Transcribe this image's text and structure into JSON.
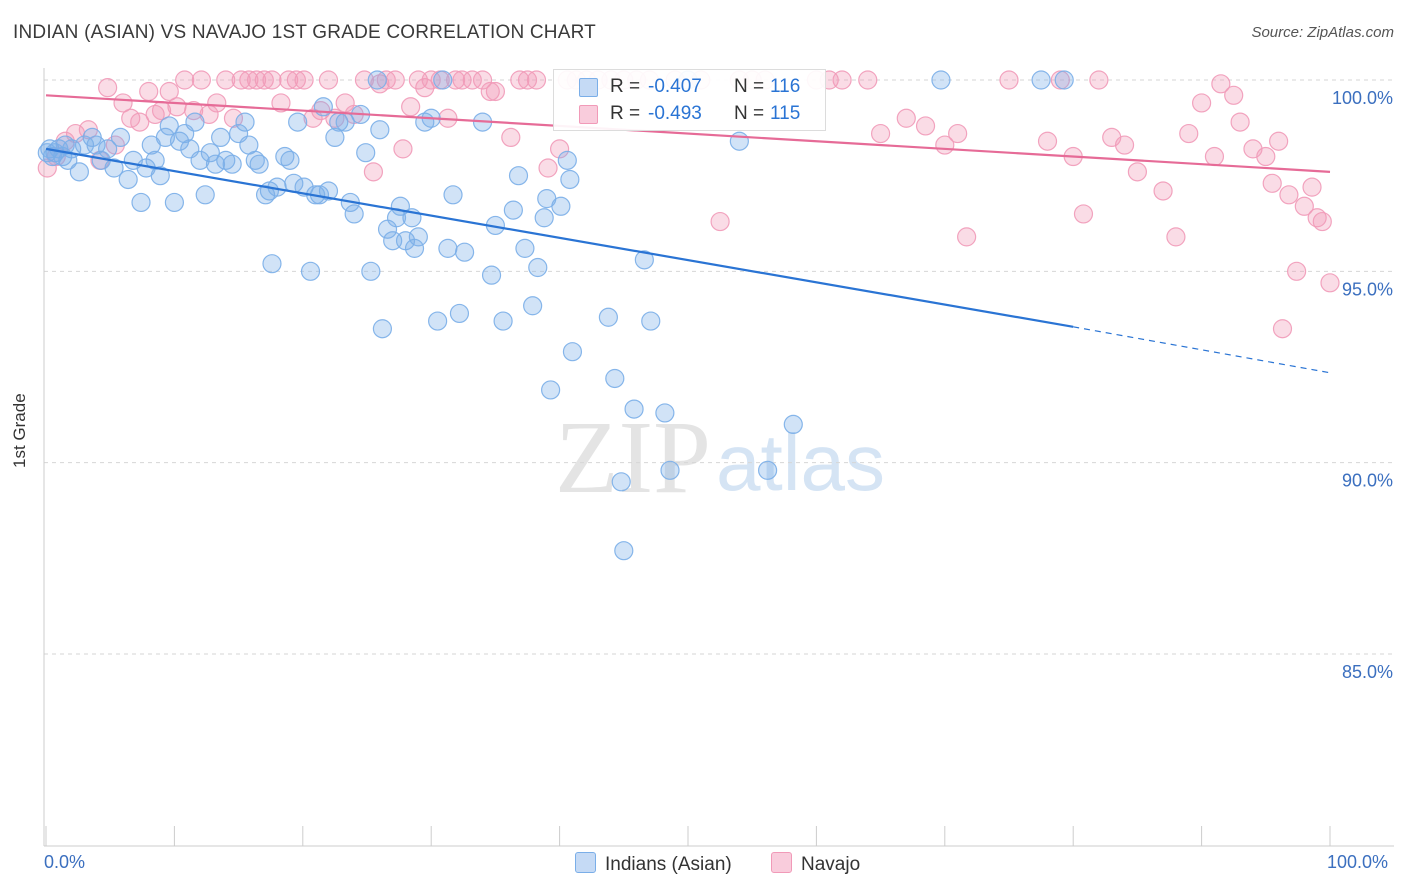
{
  "title": "INDIAN (ASIAN) VS NAVAJO 1ST GRADE CORRELATION CHART",
  "source": "Source: ZipAtlas.com",
  "watermark": {
    "zip": "ZIP",
    "atlas": "atlas"
  },
  "colors": {
    "blue": "#7aaee8",
    "blue_line": "#2a74d4",
    "pink": "#f19ab8",
    "pink_line": "#e66b97",
    "axis_text": "#3b6fbf",
    "grid": "#d6d6d6"
  },
  "legend": {
    "series1": {
      "r_label": "R =",
      "r_value": "-0.407",
      "n_label": "N =",
      "n_value": "116"
    },
    "series2": {
      "r_label": "R =",
      "r_value": "-0.493",
      "n_label": "N =",
      "n_value": "115"
    }
  },
  "bottom_legend": {
    "series1": "Indians (Asian)",
    "series2": "Navajo"
  },
  "chart_data": {
    "type": "scatter",
    "title": "INDIAN (ASIAN) VS NAVAJO 1ST GRADE CORRELATION CHART",
    "xlabel": "",
    "ylabel": "1st Grade",
    "xlim": [
      0,
      100
    ],
    "ylim": [
      80.5,
      101.0
    ],
    "x_tick_labels": [
      "0.0%",
      "100.0%"
    ],
    "y_ticks": [
      85,
      90,
      95,
      100
    ],
    "y_tick_labels": [
      "85.0%",
      "90.0%",
      "95.0%",
      "100.0%"
    ],
    "grid": true,
    "series": [
      {
        "name": "Indians (Asian)",
        "r": -0.407,
        "n": 116,
        "trend": {
          "x0": 0,
          "y0": 98.2,
          "x1": 80,
          "y1": 93.55,
          "dash_to_x": 100,
          "dash_to_y": 92.35
        },
        "points": [
          [
            0.3,
            98.2
          ],
          [
            0.5,
            98.0
          ],
          [
            0.7,
            98.1
          ],
          [
            1.0,
            98.2
          ],
          [
            1.3,
            98.0
          ],
          [
            1.7,
            97.9
          ],
          [
            2.0,
            98.2
          ],
          [
            2.6,
            97.6
          ],
          [
            3.0,
            98.3
          ],
          [
            3.6,
            98.5
          ],
          [
            3.9,
            98.3
          ],
          [
            4.3,
            97.9
          ],
          [
            4.8,
            98.2
          ],
          [
            5.3,
            97.7
          ],
          [
            5.8,
            98.5
          ],
          [
            6.4,
            97.4
          ],
          [
            6.8,
            97.9
          ],
          [
            7.4,
            96.8
          ],
          [
            7.8,
            97.7
          ],
          [
            8.2,
            98.3
          ],
          [
            8.5,
            97.9
          ],
          [
            8.9,
            97.5
          ],
          [
            9.3,
            98.5
          ],
          [
            9.6,
            98.8
          ],
          [
            10.0,
            96.8
          ],
          [
            10.4,
            98.4
          ],
          [
            10.8,
            98.6
          ],
          [
            11.2,
            98.2
          ],
          [
            11.6,
            98.9
          ],
          [
            12.0,
            97.9
          ],
          [
            12.4,
            97.0
          ],
          [
            12.8,
            98.1
          ],
          [
            13.2,
            97.8
          ],
          [
            13.6,
            98.5
          ],
          [
            14.0,
            97.9
          ],
          [
            14.5,
            97.8
          ],
          [
            15.0,
            98.6
          ],
          [
            15.5,
            98.9
          ],
          [
            15.8,
            98.3
          ],
          [
            16.3,
            97.9
          ],
          [
            16.6,
            97.8
          ],
          [
            17.1,
            97.0
          ],
          [
            17.4,
            97.1
          ],
          [
            17.6,
            95.2
          ],
          [
            18.0,
            97.2
          ],
          [
            18.6,
            98.0
          ],
          [
            19.0,
            97.9
          ],
          [
            19.3,
            97.3
          ],
          [
            19.6,
            98.9
          ],
          [
            20.1,
            97.2
          ],
          [
            20.6,
            95.0
          ],
          [
            21.0,
            97.0
          ],
          [
            21.3,
            97.0
          ],
          [
            21.6,
            99.3
          ],
          [
            22.0,
            97.1
          ],
          [
            22.5,
            98.5
          ],
          [
            22.8,
            98.9
          ],
          [
            23.3,
            98.9
          ],
          [
            23.7,
            96.8
          ],
          [
            24.0,
            96.5
          ],
          [
            24.5,
            99.1
          ],
          [
            24.9,
            98.1
          ],
          [
            25.3,
            95.0
          ],
          [
            25.8,
            100.0
          ],
          [
            26.0,
            98.7
          ],
          [
            26.2,
            93.5
          ],
          [
            26.6,
            96.1
          ],
          [
            27.0,
            95.8
          ],
          [
            27.3,
            96.4
          ],
          [
            27.6,
            96.7
          ],
          [
            28.0,
            95.8
          ],
          [
            28.5,
            96.4
          ],
          [
            28.7,
            95.6
          ],
          [
            29.0,
            95.9
          ],
          [
            29.5,
            98.9
          ],
          [
            30.0,
            99.0
          ],
          [
            30.5,
            93.7
          ],
          [
            30.9,
            100.0
          ],
          [
            31.3,
            95.6
          ],
          [
            31.7,
            97.0
          ],
          [
            32.2,
            93.9
          ],
          [
            32.6,
            95.5
          ],
          [
            34.0,
            98.9
          ],
          [
            34.7,
            94.9
          ],
          [
            35.0,
            96.2
          ],
          [
            35.6,
            93.7
          ],
          [
            36.4,
            96.6
          ],
          [
            36.8,
            97.5
          ],
          [
            37.3,
            95.6
          ],
          [
            37.9,
            94.1
          ],
          [
            38.3,
            95.1
          ],
          [
            38.8,
            96.4
          ],
          [
            39.0,
            96.9
          ],
          [
            39.3,
            91.9
          ],
          [
            40.1,
            96.7
          ],
          [
            40.6,
            97.9
          ],
          [
            40.8,
            97.4
          ],
          [
            41.0,
            92.9
          ],
          [
            43.8,
            93.8
          ],
          [
            44.3,
            92.2
          ],
          [
            44.8,
            89.5
          ],
          [
            45.0,
            87.7
          ],
          [
            45.8,
            91.4
          ],
          [
            46.6,
            95.3
          ],
          [
            47.1,
            93.7
          ],
          [
            48.2,
            91.3
          ],
          [
            48.6,
            89.8
          ],
          [
            50.0,
            100.0
          ],
          [
            54.0,
            98.4
          ],
          [
            56.2,
            89.8
          ],
          [
            58.2,
            91.0
          ],
          [
            69.7,
            100.0
          ],
          [
            77.5,
            100.0
          ],
          [
            79.3,
            100.0
          ],
          [
            0.1,
            98.1
          ],
          [
            1.5,
            98.3
          ]
        ]
      },
      {
        "name": "Navajo",
        "r": -0.493,
        "n": 115,
        "trend": {
          "x0": 0,
          "y0": 99.6,
          "x1": 100,
          "y1": 97.6
        },
        "points": [
          [
            0.1,
            97.7
          ],
          [
            0.8,
            98.0
          ],
          [
            1.5,
            98.4
          ],
          [
            2.3,
            98.6
          ],
          [
            3.3,
            98.7
          ],
          [
            4.2,
            97.9
          ],
          [
            4.8,
            99.8
          ],
          [
            5.4,
            98.3
          ],
          [
            6.0,
            99.4
          ],
          [
            6.6,
            99.0
          ],
          [
            7.3,
            98.9
          ],
          [
            8.0,
            99.7
          ],
          [
            8.5,
            99.1
          ],
          [
            9.0,
            99.2
          ],
          [
            9.6,
            99.7
          ],
          [
            10.2,
            99.3
          ],
          [
            10.8,
            100.0
          ],
          [
            11.5,
            99.2
          ],
          [
            12.1,
            100.0
          ],
          [
            12.7,
            99.1
          ],
          [
            13.3,
            99.4
          ],
          [
            14.0,
            100.0
          ],
          [
            14.6,
            99.0
          ],
          [
            15.2,
            100.0
          ],
          [
            15.8,
            100.0
          ],
          [
            16.4,
            100.0
          ],
          [
            17.0,
            100.0
          ],
          [
            17.6,
            100.0
          ],
          [
            18.3,
            99.4
          ],
          [
            18.9,
            100.0
          ],
          [
            19.5,
            100.0
          ],
          [
            20.1,
            100.0
          ],
          [
            20.8,
            99.0
          ],
          [
            21.4,
            99.2
          ],
          [
            22.0,
            100.0
          ],
          [
            22.5,
            99.0
          ],
          [
            23.3,
            99.4
          ],
          [
            24.0,
            99.1
          ],
          [
            24.8,
            100.0
          ],
          [
            25.5,
            97.6
          ],
          [
            26.0,
            99.9
          ],
          [
            26.5,
            100.0
          ],
          [
            27.2,
            100.0
          ],
          [
            27.8,
            98.2
          ],
          [
            28.4,
            99.3
          ],
          [
            29.0,
            100.0
          ],
          [
            29.5,
            99.8
          ],
          [
            30.0,
            100.0
          ],
          [
            30.7,
            100.0
          ],
          [
            31.3,
            99.0
          ],
          [
            31.9,
            100.0
          ],
          [
            32.4,
            100.0
          ],
          [
            33.2,
            100.0
          ],
          [
            34.0,
            100.0
          ],
          [
            34.6,
            99.7
          ],
          [
            35.0,
            99.7
          ],
          [
            36.2,
            98.5
          ],
          [
            36.9,
            100.0
          ],
          [
            37.5,
            100.0
          ],
          [
            38.2,
            100.0
          ],
          [
            39.1,
            97.7
          ],
          [
            40.0,
            98.2
          ],
          [
            40.6,
            100.0
          ],
          [
            41.3,
            100.0
          ],
          [
            42.1,
            100.0
          ],
          [
            43.0,
            100.0
          ],
          [
            44.0,
            100.0
          ],
          [
            45.0,
            100.0
          ],
          [
            46.0,
            100.0
          ],
          [
            47.0,
            100.0
          ],
          [
            49.0,
            100.0
          ],
          [
            51.0,
            100.0
          ],
          [
            52.5,
            96.3
          ],
          [
            54.0,
            100.0
          ],
          [
            55.0,
            100.0
          ],
          [
            56.0,
            100.0
          ],
          [
            60.0,
            100.0
          ],
          [
            61.0,
            100.0
          ],
          [
            62.0,
            100.0
          ],
          [
            64.0,
            100.0
          ],
          [
            65.0,
            98.6
          ],
          [
            67.0,
            99.0
          ],
          [
            68.5,
            98.8
          ],
          [
            70.0,
            98.3
          ],
          [
            71.0,
            98.6
          ],
          [
            71.7,
            95.9
          ],
          [
            75.0,
            100.0
          ],
          [
            78.0,
            98.4
          ],
          [
            79.0,
            100.0
          ],
          [
            80.0,
            98.0
          ],
          [
            80.8,
            96.5
          ],
          [
            82.0,
            100.0
          ],
          [
            83.0,
            98.5
          ],
          [
            84.0,
            98.3
          ],
          [
            85.0,
            97.6
          ],
          [
            87.0,
            97.1
          ],
          [
            88.0,
            95.9
          ],
          [
            89.0,
            98.6
          ],
          [
            90.0,
            99.4
          ],
          [
            91.0,
            98.0
          ],
          [
            91.5,
            99.9
          ],
          [
            92.5,
            99.6
          ],
          [
            93.0,
            98.9
          ],
          [
            94.0,
            98.2
          ],
          [
            95.0,
            98.0
          ],
          [
            95.5,
            97.3
          ],
          [
            96.0,
            98.4
          ],
          [
            96.8,
            97.0
          ],
          [
            97.4,
            95.0
          ],
          [
            98.0,
            96.7
          ],
          [
            98.6,
            97.2
          ],
          [
            99.0,
            96.4
          ],
          [
            99.4,
            96.3
          ],
          [
            100.0,
            94.7
          ],
          [
            96.3,
            93.5
          ]
        ]
      }
    ]
  }
}
